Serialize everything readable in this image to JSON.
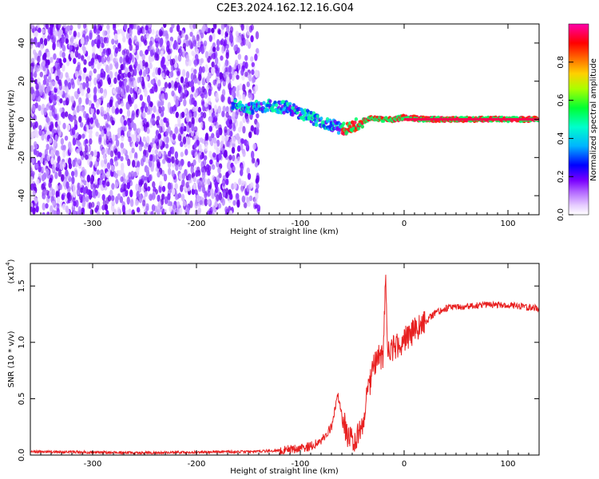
{
  "figure": {
    "title": "C2E3.2024.162.12.16.G04"
  },
  "chart_data": [
    {
      "type": "heatmap",
      "title": "C2E3.2024.162.12.16.G04",
      "xlabel": "Height of straight line (km)",
      "ylabel": "Frequency (Hz)",
      "xlim": [
        -360,
        130
      ],
      "ylim": [
        -50,
        50
      ],
      "x_ticks": [
        -300,
        -200,
        -100,
        0,
        100
      ],
      "y_ticks": [
        -40,
        -20,
        0,
        20,
        40
      ],
      "colorbar": {
        "label": "Normalized spectral amplitude",
        "range": [
          0.0,
          1.0
        ],
        "ticks": [
          0.0,
          0.2,
          0.4,
          0.6,
          0.8
        ],
        "colormap": [
          "#ffffff",
          "#e6ccff",
          "#b266ff",
          "#7a00ff",
          "#0000ff",
          "#00c8ff",
          "#00ff66",
          "#ffff00",
          "#ff8000",
          "#ff0000",
          "#ff00b0"
        ]
      },
      "ridge": {
        "description_x": [
          -165,
          -150,
          -130,
          -110,
          -95,
          -80,
          -70,
          -60,
          -50,
          -40,
          -30,
          -20,
          -10,
          0,
          20,
          50,
          80,
          110,
          130
        ],
        "frequency_hz": [
          8,
          6,
          7,
          6,
          2,
          -1,
          -3,
          -5,
          -4,
          -1,
          1,
          0,
          0,
          1,
          0,
          0,
          0,
          0,
          0
        ]
      },
      "grid": false
    },
    {
      "type": "line",
      "xlabel": "Height of straight line (km)",
      "ylabel": "SNR (10 * v/v)",
      "y_scale_note": "(x10",
      "y_scale_exp": "4",
      "y_scale_close": ")",
      "xlim": [
        -360,
        130
      ],
      "ylim": [
        0,
        1.7
      ],
      "x_ticks": [
        -300,
        -200,
        -100,
        0,
        100
      ],
      "y_ticks": [
        0.0,
        0.5,
        1.0,
        1.5
      ],
      "series": [
        {
          "color": "#e82020",
          "x": [
            -360,
            -250,
            -150,
            -120,
            -100,
            -90,
            -80,
            -70,
            -64,
            -60,
            -55,
            -50,
            -45,
            -40,
            -35,
            -30,
            -25,
            -20,
            -18,
            -16,
            -10,
            0,
            10,
            20,
            30,
            40,
            60,
            80,
            100,
            130
          ],
          "y": [
            0.03,
            0.02,
            0.03,
            0.04,
            0.06,
            0.08,
            0.12,
            0.25,
            0.55,
            0.35,
            0.18,
            0.12,
            0.18,
            0.3,
            0.55,
            0.75,
            0.9,
            0.85,
            1.65,
            0.95,
            0.95,
            1.02,
            1.1,
            1.18,
            1.26,
            1.3,
            1.32,
            1.33,
            1.33,
            1.3
          ]
        }
      ],
      "grid": false
    }
  ]
}
